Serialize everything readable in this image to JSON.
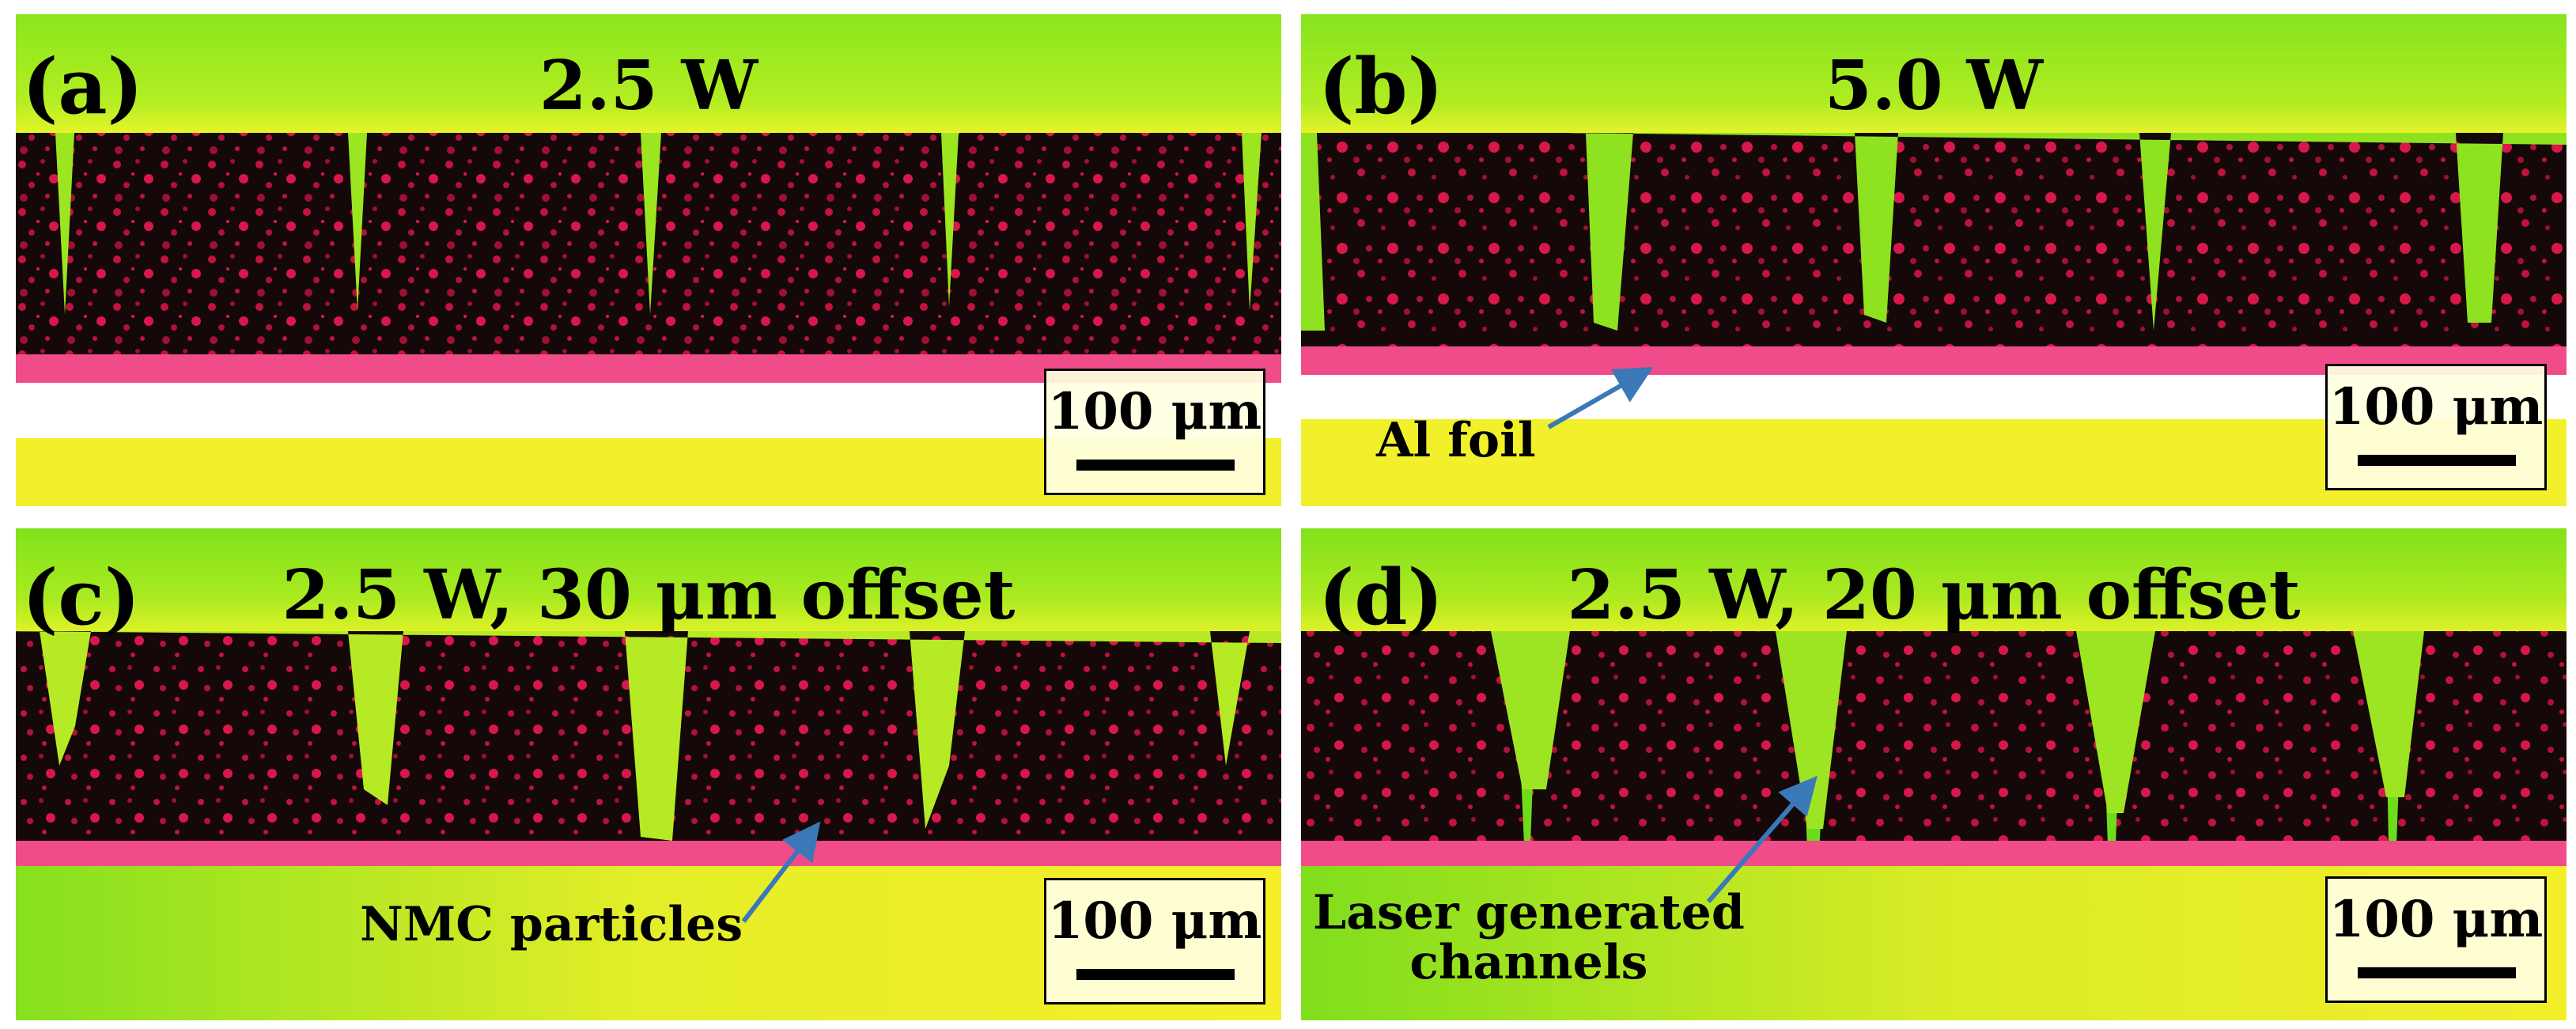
{
  "panels": [
    {
      "id": "a",
      "label": "(a)",
      "title": "2.5 W",
      "scale": "100 μm"
    },
    {
      "id": "b",
      "label": "(b)",
      "title": "5.0 W",
      "scale": "100 μm"
    },
    {
      "id": "c",
      "label": "(c)",
      "title": "2.5 W, 30 μm offset",
      "scale": "100 μm"
    },
    {
      "id": "d",
      "label": "(d)",
      "title": "2.5 W, 20 μm offset",
      "scale": "100 μm"
    }
  ],
  "annotations": {
    "al_foil": "Al foil",
    "nmc_particles": "NMC particles",
    "channels_line1": "Laser generated",
    "channels_line2": "channels"
  },
  "colors": {
    "background_green": "#7ee61c",
    "highlight_yellow": "#f5f52a",
    "electrode_dark": "#120808",
    "particles": "#e8174a",
    "foil_pink": "#f0508c",
    "arrow": "#3a78b8"
  }
}
